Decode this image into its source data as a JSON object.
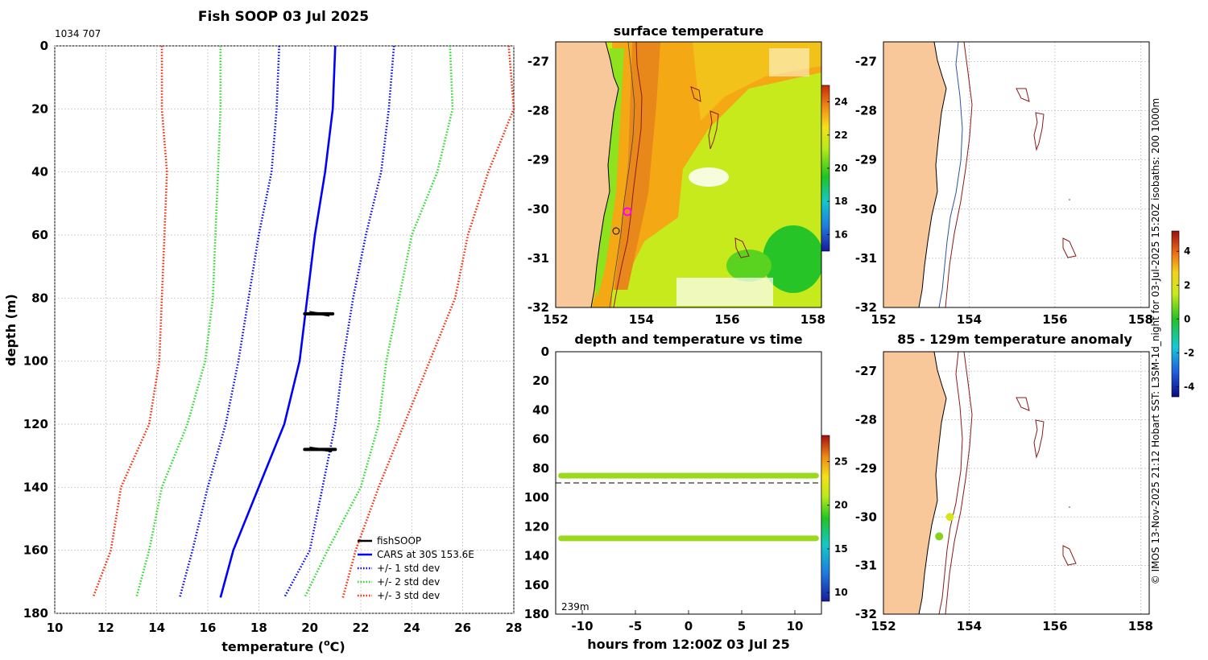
{
  "header": {
    "title": "Fish SOOP 03 Jul 2025",
    "id_label": "1034 707",
    "copyright": "© IMOS 13-Nov-2025 21:12 Hobart SST: L3SM-1d_night for 03-Jul-2025 15:20Z isobaths: 200  1000m"
  },
  "colors": {
    "fishsoop": "#000000",
    "cars": "#0000ff",
    "std1": "#0000ff",
    "std2": "#22dd22",
    "std3": "#ff2200",
    "land": "#f9c89a",
    "isobath": "#8b1a1a",
    "profile_dot": "#9ad91c",
    "anom_dot_a": "#d7e61a",
    "anom_dot_b": "#86d21e"
  },
  "chart_data": [
    {
      "type": "line",
      "name": "profile",
      "title": "Fish SOOP 03 Jul 2025",
      "xlabel": "temperature (°C)",
      "ylabel": "depth (m)",
      "xlim": [
        10,
        28
      ],
      "ylim": [
        180,
        0
      ],
      "xticks": [
        "10",
        "12",
        "14",
        "16",
        "18",
        "20",
        "22",
        "24",
        "26",
        "28"
      ],
      "yticks": [
        "0",
        "20",
        "40",
        "60",
        "80",
        "100",
        "120",
        "140",
        "160",
        "180"
      ],
      "depths": [
        0,
        20,
        40,
        60,
        80,
        100,
        120,
        140,
        160,
        175
      ],
      "series": [
        {
          "name": "CARS at 30S 153.6E",
          "style": "solid",
          "values": [
            21.0,
            20.9,
            20.6,
            20.2,
            19.9,
            19.6,
            19.0,
            18.0,
            17.0,
            16.5
          ]
        },
        {
          "name": "+/- 1 std dev",
          "style": "dotted",
          "values": [
            18.8,
            18.7,
            18.5,
            18.0,
            17.6,
            17.2,
            16.7,
            16.0,
            15.4,
            14.9
          ]
        },
        {
          "name": "+/- 1 std dev",
          "style": "dotted",
          "values": [
            23.3,
            23.1,
            22.8,
            22.2,
            21.7,
            21.3,
            21.0,
            20.5,
            20.0,
            19.0
          ]
        },
        {
          "name": "+/- 2 std dev",
          "style": "dotted",
          "values": [
            16.5,
            16.5,
            16.4,
            16.3,
            16.2,
            15.9,
            15.2,
            14.2,
            13.7,
            13.2
          ]
        },
        {
          "name": "+/- 2 std dev",
          "style": "dotted",
          "values": [
            25.5,
            25.6,
            25.0,
            24.0,
            23.5,
            23.0,
            22.7,
            22.0,
            20.7,
            19.8
          ]
        },
        {
          "name": "+/- 3 std dev",
          "style": "dotted",
          "values": [
            14.2,
            14.2,
            14.4,
            14.3,
            14.2,
            14.1,
            13.7,
            12.6,
            12.2,
            11.5
          ]
        },
        {
          "name": "+/- 3 std dev",
          "style": "dotted",
          "values": [
            27.8,
            28.0,
            27.0,
            26.2,
            25.7,
            24.7,
            23.7,
            22.7,
            21.8,
            21.3
          ]
        }
      ],
      "fishsoop": [
        {
          "depth": 85,
          "tmin": 19.8,
          "tmax": 20.9
        },
        {
          "depth": 128,
          "tmin": 19.8,
          "tmax": 21.0
        }
      ],
      "legend": {
        "position": "bottom-right",
        "entries": [
          "fishSOOP",
          "CARS at 30S 153.6E",
          "+/- 1 std dev",
          "+/- 2 std dev",
          "+/- 3 std dev"
        ]
      }
    },
    {
      "type": "heatmap",
      "name": "surface_temperature_map",
      "title": "surface temperature",
      "xlim": [
        152,
        158.2
      ],
      "ylim": [
        -32,
        -26.6
      ],
      "xticks": [
        "152",
        "154",
        "156",
        "158"
      ],
      "yticks": [
        "-27",
        "-28",
        "-29",
        "-30",
        "-31",
        "-32"
      ],
      "colorbar": {
        "ticks": [
          "24",
          "22",
          "20",
          "18",
          "16"
        ],
        "range": [
          15,
          25
        ]
      }
    },
    {
      "type": "scatter",
      "name": "depth_time",
      "title": "depth and temperature vs time",
      "xlabel": "hours from 12:00Z 03 Jul 25",
      "xlim": [
        -12.5,
        12.5
      ],
      "ylim": [
        180,
        0
      ],
      "xticks": [
        "-10",
        "-5",
        "0",
        "5",
        "10"
      ],
      "yticks": [
        "0",
        "20",
        "40",
        "60",
        "80",
        "100",
        "120",
        "140",
        "160",
        "180"
      ],
      "bands": [
        {
          "depth": 85,
          "temperature": 21.5
        },
        {
          "depth": 128,
          "temperature": 20.8
        }
      ],
      "reference_depth": 90,
      "annotation": "239m",
      "colorbar": {
        "ticks": [
          "25",
          "20",
          "15",
          "10"
        ],
        "range": [
          9,
          28
        ]
      }
    },
    {
      "type": "scatter",
      "name": "isobath_map",
      "title": "",
      "xlim": [
        152,
        158.2
      ],
      "ylim": [
        -32,
        -26.6
      ],
      "xticks": [
        "152",
        "154",
        "156",
        "158"
      ],
      "yticks": [
        "-27",
        "-28",
        "-29",
        "-30",
        "-31",
        "-32"
      ]
    },
    {
      "type": "scatter",
      "name": "anomaly_map",
      "title": "85 - 129m temperature anomaly",
      "xlim": [
        152,
        158.2
      ],
      "ylim": [
        -32,
        -26.6
      ],
      "xticks": [
        "152",
        "154",
        "156",
        "158"
      ],
      "yticks": [
        "-27",
        "-28",
        "-29",
        "-30",
        "-31",
        "-32"
      ],
      "points": [
        {
          "lon": 153.55,
          "lat": -30.0,
          "anomaly": 2.4
        },
        {
          "lon": 153.3,
          "lat": -30.4,
          "anomaly": 0.8
        }
      ],
      "colorbar": {
        "ticks": [
          "4",
          "2",
          "0",
          "-2",
          "-4"
        ],
        "range": [
          -4.6,
          5.2
        ]
      }
    }
  ]
}
